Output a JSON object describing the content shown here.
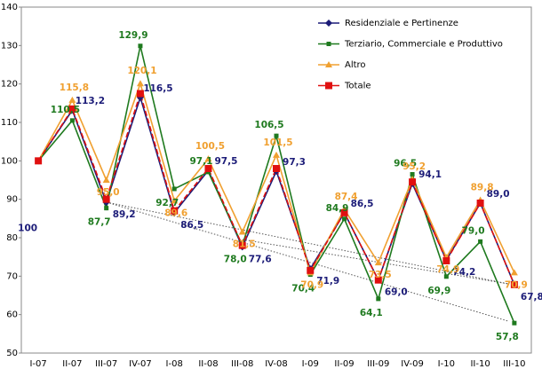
{
  "chart_data": {
    "type": "line",
    "categories": [
      "I-07",
      "II-07",
      "III-07",
      "IV-07",
      "I-08",
      "II-08",
      "III-08",
      "IV-08",
      "I-09",
      "II-09",
      "III-09",
      "IV-09",
      "I-10",
      "II-10",
      "III-10"
    ],
    "series": [
      {
        "name": "Residenziale e Pertinenze",
        "color": "#1c1c78",
        "marker": "diamond",
        "values": [
          100,
          113.2,
          89.2,
          116.5,
          86.5,
          97.5,
          77.6,
          97.3,
          71.9,
          86.5,
          69.0,
          94.1,
          74.2,
          89.0,
          67.8
        ],
        "value_labels": [
          "100",
          "113,2",
          "89,2",
          "116,5",
          "86,5",
          "97,5",
          "77,6",
          "97,3",
          "71,9",
          "86,5",
          "69,0",
          "94,1",
          "74,2",
          "89,0",
          "67,8"
        ]
      },
      {
        "name": "Terziario, Commerciale e Produttivo",
        "color": "#1f7a1f",
        "marker": "square",
        "values": [
          100,
          110.5,
          87.7,
          129.9,
          92.7,
          97.1,
          78.0,
          106.5,
          70.4,
          84.9,
          64.1,
          96.5,
          69.9,
          79.0,
          57.8
        ],
        "value_labels": [
          null,
          "110,5",
          "87,7",
          "129,9",
          "92,7",
          "97,1",
          "78,0",
          "106,5",
          "70,4",
          "84,9",
          "64,1",
          "96,5",
          "69,9",
          "79,0",
          "57,8"
        ]
      },
      {
        "name": "Altro",
        "color": "#f0a030",
        "marker": "triangle",
        "values": [
          100,
          115.8,
          95.0,
          120.1,
          89.6,
          100.5,
          81.5,
          101.5,
          70.9,
          87.4,
          73.5,
          95.2,
          74.9,
          89.8,
          70.9
        ],
        "value_labels": [
          null,
          "115,8",
          "95,0",
          "120,1",
          "89,6",
          "100,5",
          "81,5",
          "101,5",
          "70,9",
          "87,4",
          "73,5",
          "95,2",
          "74,9",
          "89,8",
          "70,9"
        ]
      },
      {
        "name": "Totale",
        "color": "#e01010",
        "marker": "bigsquare",
        "values": [
          100,
          113.5,
          90.0,
          117.5,
          87.0,
          98.0,
          78.0,
          98.0,
          71.5,
          86.5,
          69.0,
          94.5,
          74.0,
          89.0,
          67.8
        ]
      }
    ],
    "ylim": [
      50,
      140
    ],
    "yticks": [
      50,
      60,
      70,
      80,
      90,
      100,
      110,
      120,
      130,
      140
    ]
  }
}
